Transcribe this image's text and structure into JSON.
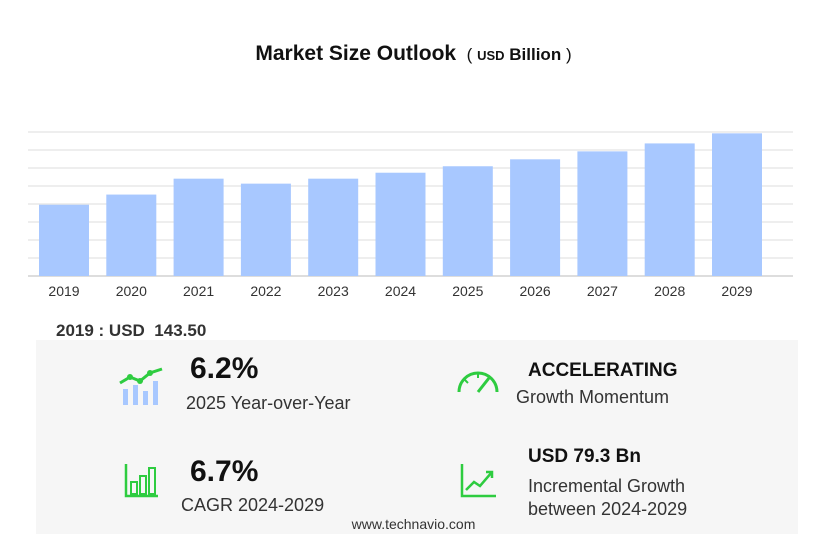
{
  "title": {
    "main": "Market Size Outlook",
    "open": "(",
    "currency": "USD",
    "unit": "Billion",
    "close": ")"
  },
  "base_value": {
    "label": "2019 : USD",
    "value": "143.50"
  },
  "stats": {
    "yoy": {
      "value": "6.2%",
      "label": "2025 Year-over-Year"
    },
    "momentum": {
      "value": "ACCELERATING",
      "label": "Growth Momentum"
    },
    "cagr": {
      "value": "6.7%",
      "label": "CAGR 2024-2029"
    },
    "incremental": {
      "value": "USD 79.3 Bn",
      "label_line1": "Incremental Growth",
      "label_line2": "between 2024-2029"
    }
  },
  "footer": "www.technavio.com",
  "colors": {
    "bar": "#a8c8ff",
    "accent": "#2ecc40",
    "panel": "#f6f6f6"
  },
  "chart_data": {
    "type": "bar",
    "categories": [
      "2019",
      "2020",
      "2021",
      "2022",
      "2023",
      "2024",
      "2025",
      "2026",
      "2027",
      "2028",
      "2029"
    ],
    "values": [
      143.5,
      164.0,
      196.0,
      186.0,
      196.0,
      208.0,
      221.0,
      235.0,
      251.0,
      267.0,
      287.3
    ],
    "title": "Market Size Outlook (USD Billion)",
    "xlabel": "",
    "ylabel": "",
    "ylim": [
      0,
      290
    ],
    "grid": true
  }
}
